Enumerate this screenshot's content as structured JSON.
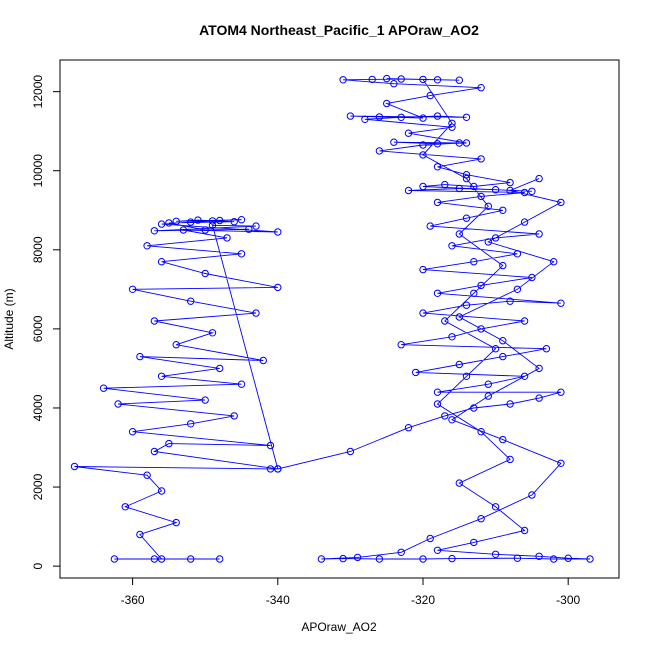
{
  "chart_data": {
    "type": "scatter",
    "title": "ATOM4 Northeast_Pacific_1 APOraw_AO2",
    "xlabel": "APOraw_AO2",
    "ylabel": "Altitude (m)",
    "xlim": [
      -370,
      -293
    ],
    "ylim": [
      -300,
      12800
    ],
    "x_ticks": [
      -360,
      -340,
      -320,
      -300
    ],
    "y_ticks": [
      0,
      2000,
      4000,
      6000,
      8000,
      10000,
      12000
    ],
    "marker": "open-circle",
    "connected": true,
    "color": "#0000ff",
    "series": [
      {
        "points": [
          [
            -362.5,
            180
          ],
          [
            -357,
            180
          ],
          [
            -352,
            180
          ],
          [
            -348,
            180
          ],
          [
            -356,
            180
          ],
          [
            -359,
            800
          ],
          [
            -354,
            1100
          ],
          [
            -361,
            1500
          ],
          [
            -356,
            1900
          ],
          [
            -358,
            2300
          ],
          [
            -368,
            2520
          ],
          [
            -341,
            2460
          ],
          [
            -340,
            2460
          ],
          [
            -357,
            2900
          ],
          [
            -355,
            3100
          ],
          [
            -341,
            3050
          ],
          [
            -360,
            3400
          ],
          [
            -352,
            3600
          ],
          [
            -346,
            3800
          ],
          [
            -362,
            4100
          ],
          [
            -350,
            4200
          ],
          [
            -364,
            4500
          ],
          [
            -345,
            4600
          ],
          [
            -356,
            4800
          ],
          [
            -348,
            5000
          ],
          [
            -359,
            5300
          ],
          [
            -342,
            5200
          ],
          [
            -354,
            5600
          ],
          [
            -349,
            5900
          ],
          [
            -357,
            6200
          ],
          [
            -343,
            6400
          ],
          [
            -352,
            6700
          ],
          [
            -360,
            7000
          ],
          [
            -340,
            7050
          ],
          [
            -350,
            7400
          ],
          [
            -356,
            7700
          ],
          [
            -345,
            7900
          ],
          [
            -358,
            8100
          ],
          [
            -347,
            8300
          ],
          [
            -353,
            8500
          ],
          [
            -340,
            8450
          ],
          [
            -356,
            8650
          ],
          [
            -352,
            8700
          ],
          [
            -348,
            8740
          ],
          [
            -345,
            8760
          ],
          [
            -354,
            8720
          ],
          [
            -351,
            8750
          ],
          [
            -349,
            8730
          ],
          [
            -346,
            8710
          ],
          [
            -355,
            8680
          ],
          [
            -350,
            8500
          ],
          [
            -344,
            8520
          ],
          [
            -357,
            8480
          ],
          [
            -343,
            8600
          ],
          [
            -349,
            8620
          ],
          [
            -340,
            2460
          ],
          [
            -330,
            2900
          ],
          [
            -322,
            3500
          ],
          [
            -317,
            3800
          ],
          [
            -313,
            4000
          ],
          [
            -308,
            4100
          ],
          [
            -304,
            4250
          ],
          [
            -301,
            4400
          ],
          [
            -318,
            4400
          ],
          [
            -311,
            4600
          ],
          [
            -306,
            4800
          ],
          [
            -321,
            4900
          ],
          [
            -315,
            5100
          ],
          [
            -309,
            5300
          ],
          [
            -303,
            5500
          ],
          [
            -323,
            5600
          ],
          [
            -316,
            5800
          ],
          [
            -312,
            6000
          ],
          [
            -306,
            6200
          ],
          [
            -320,
            6400
          ],
          [
            -314,
            6600
          ],
          [
            -308,
            6700
          ],
          [
            -301,
            6650
          ],
          [
            -318,
            6900
          ],
          [
            -312,
            7100
          ],
          [
            -305,
            7300
          ],
          [
            -320,
            7500
          ],
          [
            -313,
            7700
          ],
          [
            -307,
            7900
          ],
          [
            -316,
            8100
          ],
          [
            -310,
            8300
          ],
          [
            -304,
            8400
          ],
          [
            -319,
            8600
          ],
          [
            -314,
            8800
          ],
          [
            -309,
            9000
          ],
          [
            -318,
            9200
          ],
          [
            -312,
            9350
          ],
          [
            -306,
            9450
          ],
          [
            -322,
            9500
          ],
          [
            -315,
            9550
          ],
          [
            -310,
            9520
          ],
          [
            -305,
            9480
          ],
          [
            -320,
            9600
          ],
          [
            -317,
            9650
          ],
          [
            -313,
            9600
          ],
          [
            -308,
            9700
          ],
          [
            -314,
            9900
          ],
          [
            -318,
            10100
          ],
          [
            -312,
            10300
          ],
          [
            -326,
            10500
          ],
          [
            -320,
            10650
          ],
          [
            -315,
            10700
          ],
          [
            -324,
            10720
          ],
          [
            -318,
            10680
          ],
          [
            -314,
            10700
          ],
          [
            -322,
            10950
          ],
          [
            -316,
            11100
          ],
          [
            -328,
            11300
          ],
          [
            -323,
            11350
          ],
          [
            -318,
            11380
          ],
          [
            -314,
            11350
          ],
          [
            -330,
            11380
          ],
          [
            -326,
            11360
          ],
          [
            -320,
            11330
          ],
          [
            -325,
            11700
          ],
          [
            -319,
            11900
          ],
          [
            -312,
            12100
          ],
          [
            -324,
            12200
          ],
          [
            -331,
            12300
          ],
          [
            -327,
            12310
          ],
          [
            -323,
            12320
          ],
          [
            -318,
            12300
          ],
          [
            -315,
            12290
          ],
          [
            -325,
            12330
          ],
          [
            -320,
            12310
          ],
          [
            -316,
            11200
          ],
          [
            -320,
            10400
          ],
          [
            -314,
            9800
          ],
          [
            -311,
            9100
          ],
          [
            -315,
            8400
          ],
          [
            -309,
            7600
          ],
          [
            -313,
            6900
          ],
          [
            -317,
            6200
          ],
          [
            -310,
            5500
          ],
          [
            -314,
            4800
          ],
          [
            -318,
            4100
          ],
          [
            -312,
            3400
          ],
          [
            -308,
            2700
          ],
          [
            -315,
            2100
          ],
          [
            -310,
            1500
          ],
          [
            -306,
            900
          ],
          [
            -313,
            600
          ],
          [
            -318,
            400
          ],
          [
            -310,
            300
          ],
          [
            -304,
            250
          ],
          [
            -300,
            200
          ],
          [
            -297,
            180
          ],
          [
            -302,
            180
          ],
          [
            -307,
            200
          ],
          [
            -316,
            190
          ],
          [
            -320,
            180
          ],
          [
            -326,
            180
          ],
          [
            -331,
            190
          ],
          [
            -334,
            180
          ],
          [
            -329,
            220
          ],
          [
            -323,
            350
          ],
          [
            -319,
            700
          ],
          [
            -312,
            1200
          ],
          [
            -305,
            1800
          ],
          [
            -301,
            2600
          ],
          [
            -309,
            3200
          ],
          [
            -316,
            3700
          ],
          [
            -311,
            4300
          ],
          [
            -304,
            5000
          ],
          [
            -309,
            5700
          ],
          [
            -315,
            6300
          ],
          [
            -307,
            7000
          ],
          [
            -302,
            7700
          ],
          [
            -311,
            8200
          ],
          [
            -306,
            8700
          ],
          [
            -301,
            9200
          ],
          [
            -308,
            9500
          ],
          [
            -304,
            9800
          ]
        ]
      }
    ]
  }
}
